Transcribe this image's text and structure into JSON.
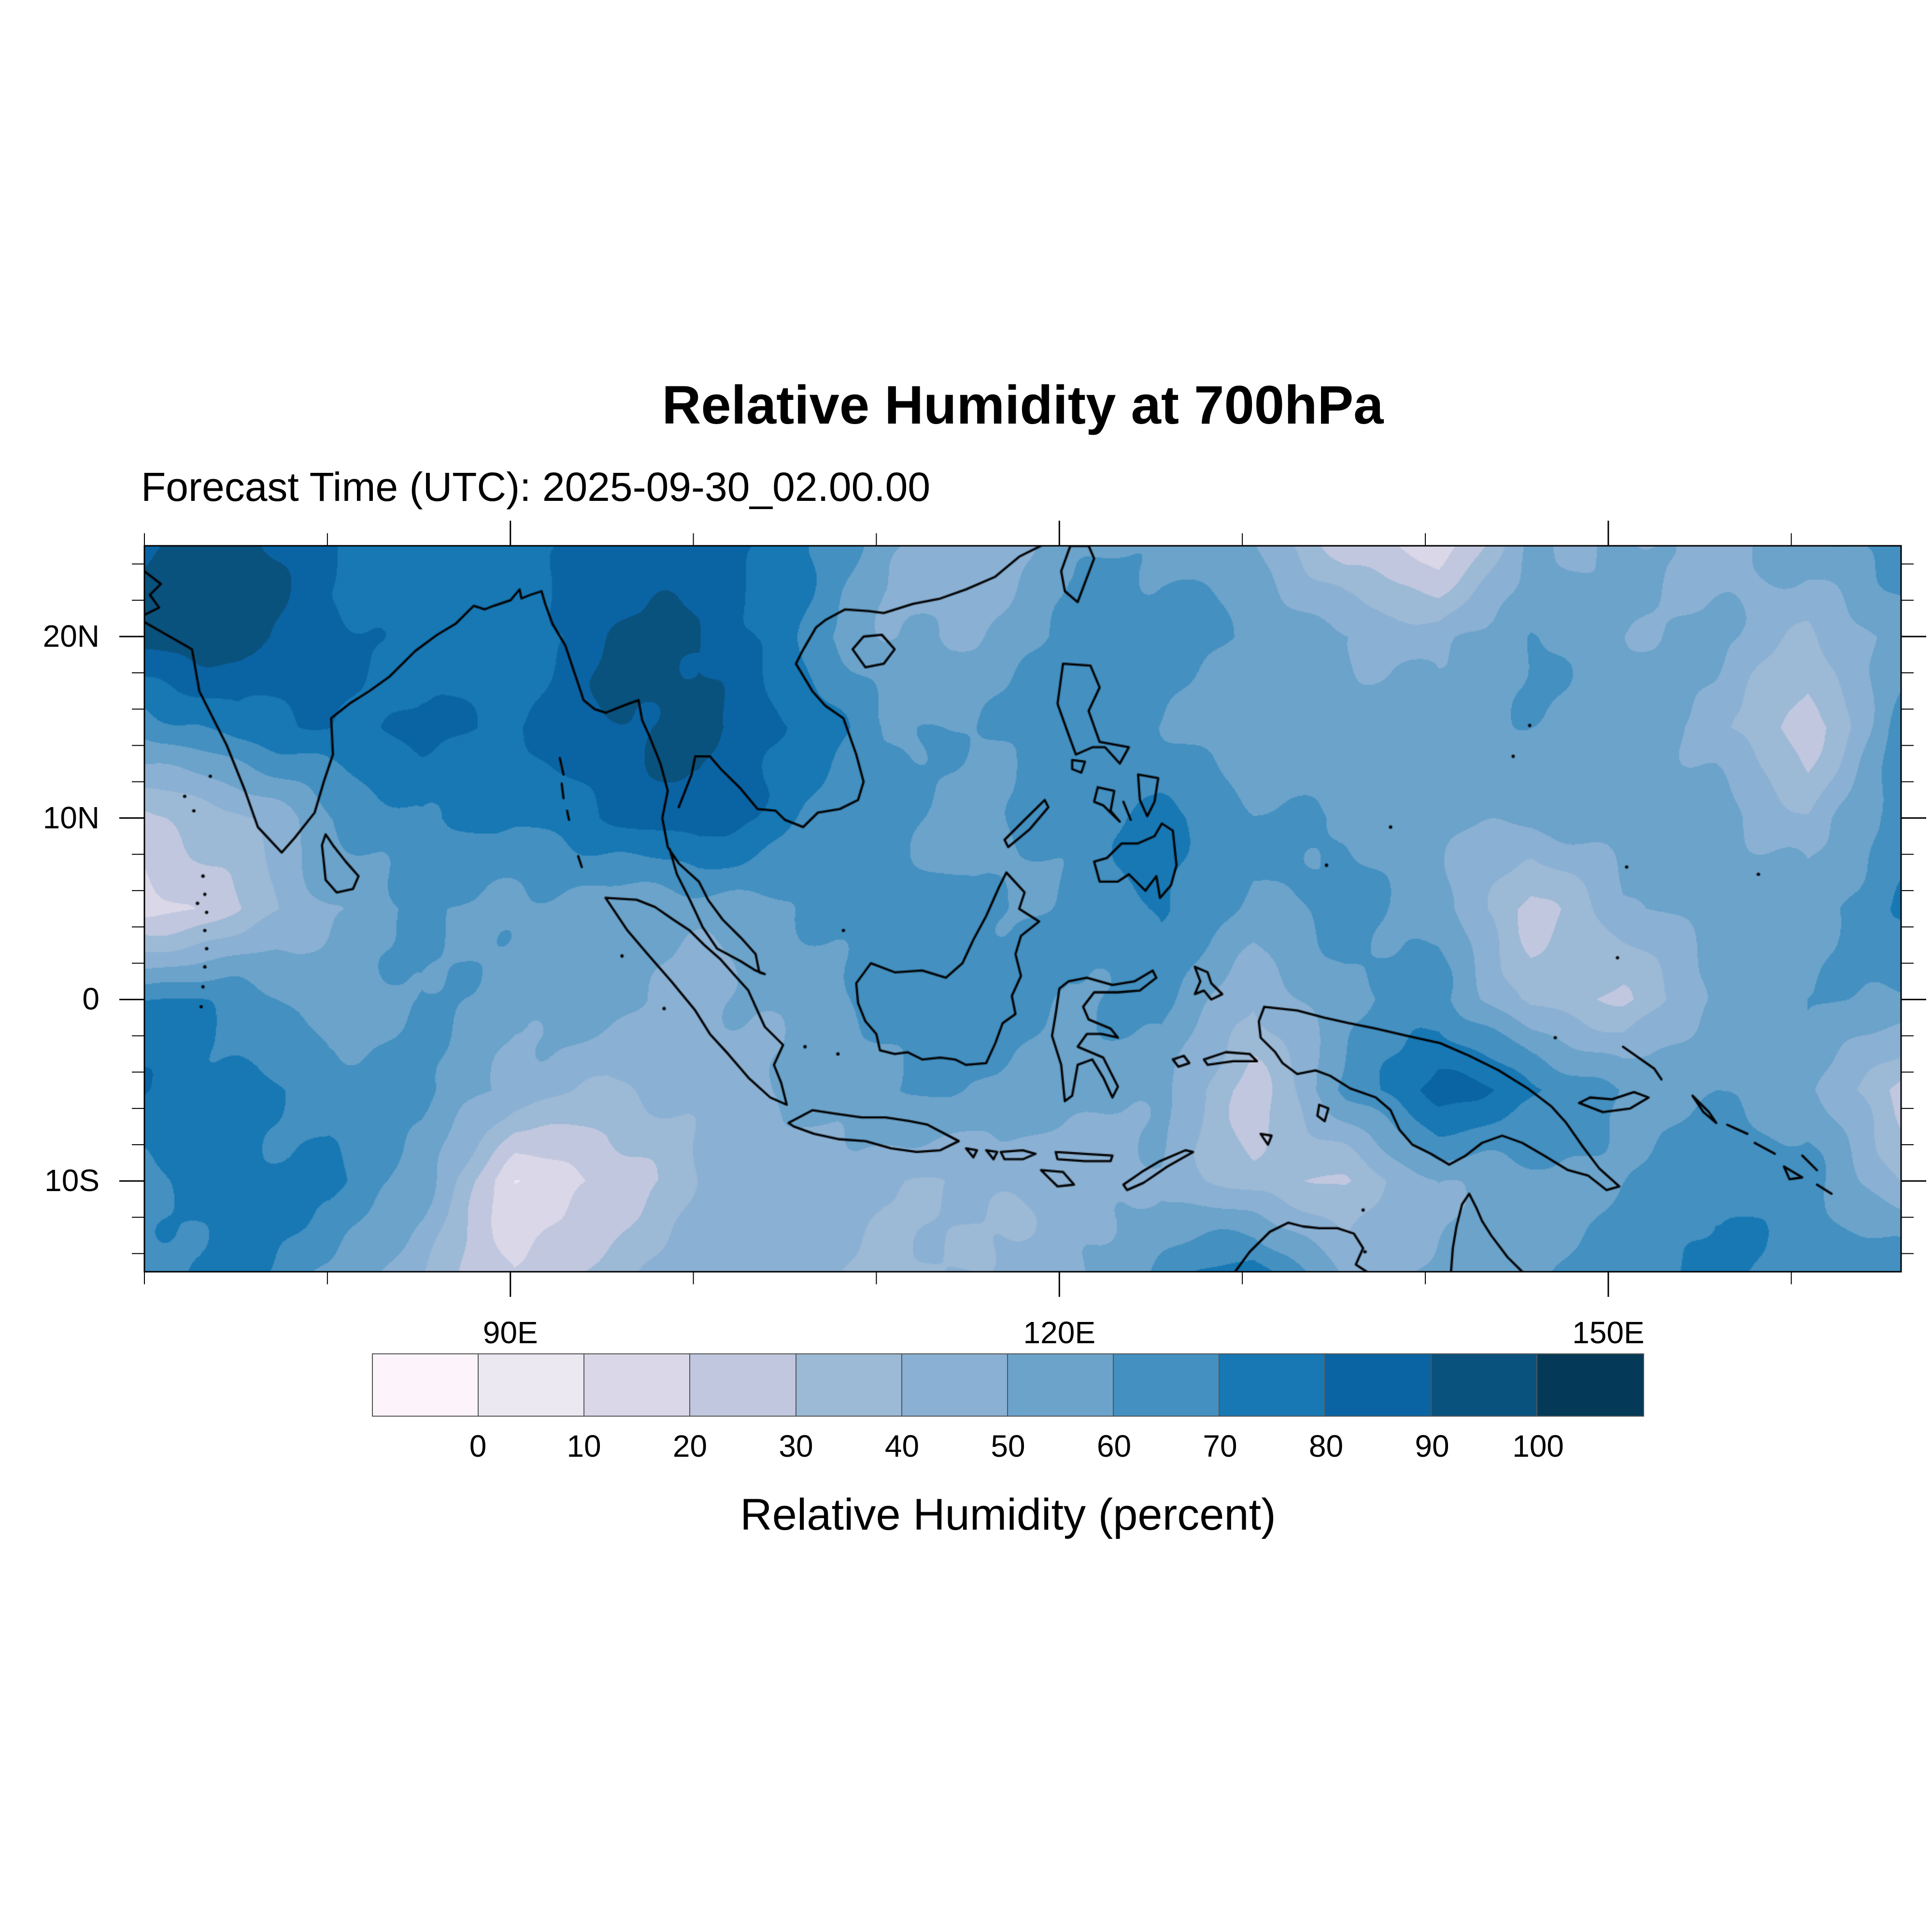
{
  "title": "Relative Humidity at 700hPa",
  "subtitle": "Forecast Time (UTC): 2025-09-30_02.00.00",
  "chart_data": {
    "type": "heatmap",
    "subtype": "filled_contour_map",
    "variable": "Relative Humidity",
    "units": "percent",
    "pressure_level": "700hPa",
    "title": "Relative Humidity at 700hPa",
    "annotation": "Forecast Time (UTC): 2025-09-30_02.00.00",
    "legend_position": "bottom",
    "grid_lines": false,
    "colorbar": {
      "title": "Relative Humidity (percent)",
      "tick_labels": [
        "0",
        "10",
        "20",
        "30",
        "40",
        "50",
        "60",
        "70",
        "80",
        "90",
        "100"
      ],
      "levels": [
        0,
        10,
        20,
        30,
        40,
        50,
        60,
        70,
        80,
        90,
        100
      ],
      "colors": [
        "#fcf4fa",
        "#ebe8f1",
        "#d9d7e8",
        "#c0c7de",
        "#9cb9d6",
        "#8ab0d3",
        "#6ba3ca",
        "#4390c1",
        "#1778b4",
        "#0a64a4",
        "#0a527e",
        "#043a57"
      ]
    },
    "axes": {
      "xlabel": "",
      "ylabel": "",
      "lon_range": [
        70,
        166
      ],
      "lat_range": [
        -15,
        25
      ],
      "x_major_ticks": [
        {
          "lon": 90,
          "label": "90E"
        },
        {
          "lon": 120,
          "label": "120E"
        },
        {
          "lon": 150,
          "label": "150E"
        }
      ],
      "x_minor_tick_lons": [
        70,
        80,
        100,
        110,
        130,
        140,
        160
      ],
      "y_major_ticks": [
        {
          "lat": 20,
          "label": "20N"
        },
        {
          "lat": 10,
          "label": "10N"
        },
        {
          "lat": 0,
          "label": "0"
        },
        {
          "lat": -10,
          "label": "10S"
        }
      ],
      "y_minor_tick_lats": [
        24,
        22,
        18,
        16,
        14,
        12,
        8,
        6,
        4,
        2,
        -2,
        -4,
        -6,
        -8,
        -12,
        -14
      ]
    },
    "grid": {
      "comment": "approximate relative humidity (percent) sampled from the plot",
      "lon_start": 70,
      "lon_step": 5,
      "lat_start": 25,
      "lat_step": -5,
      "values": [
        [
          86,
          90,
          76,
          70,
          78,
          85,
          85,
          75,
          55,
          45,
          60,
          55,
          45,
          20,
          15,
          55,
          55,
          45,
          55,
          65
        ],
        [
          90,
          93,
          85,
          78,
          70,
          85,
          88,
          72,
          52,
          50,
          58,
          62,
          58,
          52,
          45,
          60,
          48,
          50,
          38,
          55
        ],
        [
          60,
          78,
          85,
          86,
          80,
          85,
          90,
          80,
          62,
          58,
          65,
          60,
          55,
          58,
          58,
          55,
          52,
          42,
          22,
          68
        ],
        [
          28,
          35,
          60,
          75,
          75,
          80,
          85,
          70,
          65,
          60,
          68,
          70,
          60,
          62,
          58,
          55,
          55,
          50,
          42,
          72
        ],
        [
          15,
          25,
          45,
          58,
          60,
          58,
          55,
          58,
          68,
          65,
          62,
          72,
          52,
          58,
          55,
          30,
          52,
          58,
          55,
          68
        ],
        [
          72,
          68,
          52,
          58,
          50,
          55,
          50,
          55,
          60,
          62,
          58,
          66,
          42,
          55,
          58,
          35,
          32,
          55,
          58,
          55
        ],
        [
          82,
          76,
          68,
          62,
          45,
          38,
          45,
          50,
          55,
          55,
          55,
          58,
          28,
          62,
          82,
          70,
          58,
          60,
          52,
          22
        ],
        [
          72,
          74,
          70,
          55,
          15,
          25,
          40,
          42,
          38,
          42,
          48,
          52,
          32,
          28,
          52,
          58,
          62,
          68,
          62,
          40
        ],
        [
          66,
          70,
          58,
          42,
          20,
          35,
          45,
          48,
          42,
          46,
          48,
          58,
          72,
          45,
          55,
          62,
          68,
          72,
          65,
          72
        ]
      ]
    }
  }
}
